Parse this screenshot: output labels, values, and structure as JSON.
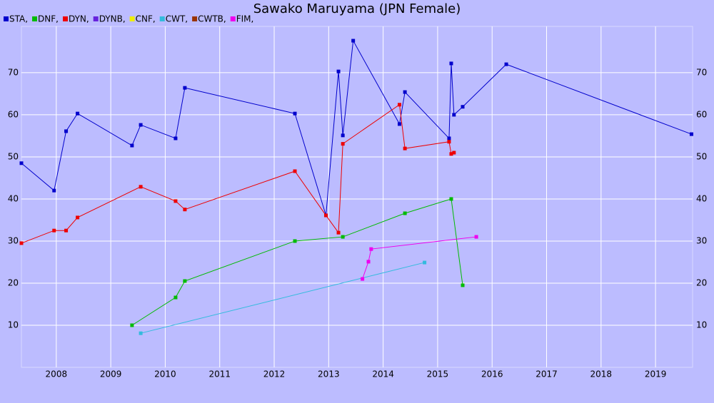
{
  "chart_data": {
    "type": "line",
    "title": "Sawako Maruyama (JPN Female)",
    "xlim": [
      2007.36,
      2019.68
    ],
    "xticks": [
      2008,
      2009,
      2010,
      2011,
      2012,
      2013,
      2014,
      2015,
      2016,
      2017,
      2018,
      2019
    ],
    "ylim": [
      0,
      81
    ],
    "yticks": [
      10,
      20,
      30,
      40,
      50,
      60,
      70
    ],
    "grid": true,
    "series": [
      {
        "name": "STA,",
        "color": "#0000cc",
        "x": [
          2007.36,
          2007.96,
          2008.18,
          2008.39,
          2009.39,
          2009.55,
          2010.19,
          2010.36,
          2012.38,
          2012.95,
          2013.18,
          2013.26,
          2013.45,
          2014.3,
          2014.4,
          2015.21,
          2015.25,
          2015.3,
          2015.46,
          2016.26,
          2019.66
        ],
        "values": [
          48.5,
          42.0,
          56.1,
          60.3,
          52.7,
          57.6,
          54.4,
          66.4,
          60.3,
          36.1,
          70.3,
          55.1,
          77.6,
          57.8,
          65.4,
          54.4,
          72.2,
          60.0,
          61.9,
          72.0,
          55.4
        ]
      },
      {
        "name": "DNF,",
        "color": "#00bb00",
        "x": [
          2009.39,
          2010.19,
          2010.36,
          2012.38,
          2013.26,
          2014.4,
          2015.25,
          2015.46
        ],
        "values": [
          10.0,
          16.6,
          20.5,
          30.0,
          31.0,
          36.6,
          40.0,
          19.5
        ]
      },
      {
        "name": "DYN,",
        "color": "#ee0000",
        "x": [
          2007.36,
          2007.96,
          2008.18,
          2008.39,
          2009.55,
          2010.19,
          2010.36,
          2012.38,
          2012.95,
          2013.18,
          2013.26,
          2014.3,
          2014.4,
          2015.21,
          2015.25,
          2015.3
        ],
        "values": [
          29.5,
          32.5,
          32.5,
          35.6,
          42.9,
          39.5,
          37.5,
          46.6,
          36.1,
          32.0,
          53.1,
          62.4,
          52.0,
          53.6,
          50.7,
          51.0
        ]
      },
      {
        "name": "DYNB,",
        "color": "#6622dd",
        "x": [],
        "values": []
      },
      {
        "name": "CNF,",
        "color": "#eeee00",
        "x": [],
        "values": []
      },
      {
        "name": "CWT,",
        "color": "#33bbdd",
        "x": [
          2009.55,
          2014.76
        ],
        "values": [
          8.1,
          24.9
        ]
      },
      {
        "name": "CWTB,",
        "color": "#993300",
        "x": [],
        "values": []
      },
      {
        "name": "FIM,",
        "color": "#ee00ee",
        "x": [
          2013.62,
          2013.73,
          2013.78,
          2015.71
        ],
        "values": [
          21.0,
          25.1,
          28.1,
          31.0
        ]
      }
    ]
  }
}
